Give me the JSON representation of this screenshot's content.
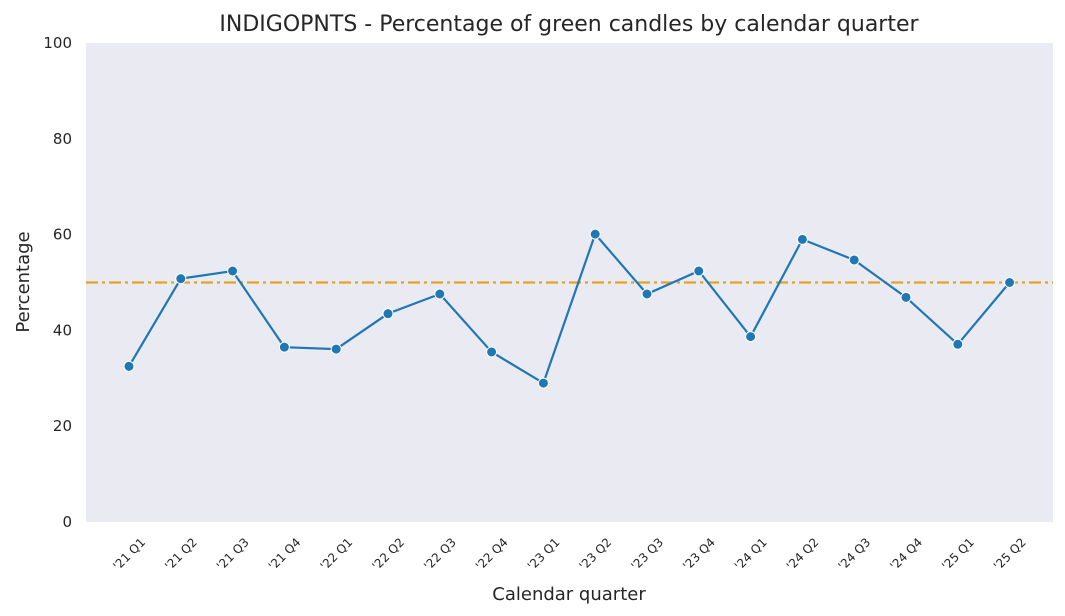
{
  "chart_data": {
    "type": "line",
    "title": "INDIGOPNTS - Percentage of green candles by calendar quarter",
    "xlabel": "Calendar quarter",
    "ylabel": "Percentage",
    "categories": [
      "'21 Q1",
      "'21 Q2",
      "'21 Q3",
      "'21 Q4",
      "'22 Q1",
      "'22 Q2",
      "'22 Q3",
      "'22 Q4",
      "'23 Q1",
      "'23 Q2",
      "'23 Q3",
      "'23 Q4",
      "'24 Q1",
      "'24 Q2",
      "'24 Q3",
      "'24 Q4",
      "'25 Q1",
      "'25 Q2"
    ],
    "series": [
      {
        "values": [
          32.5,
          50.8,
          52.4,
          36.5,
          36.1,
          43.5,
          47.6,
          35.5,
          29.0,
          60.1,
          47.6,
          52.4,
          38.7,
          59.0,
          54.7,
          46.9,
          37.1,
          50.0
        ]
      }
    ],
    "reference_line": {
      "y": 50,
      "style": "dash-dot"
    },
    "ylim": [
      0,
      100
    ],
    "yticks": [
      0,
      20,
      40,
      60,
      80,
      100
    ],
    "grid": false,
    "colors": {
      "line": "#1f77b4",
      "reference": "#e5a323",
      "plot_bg": "#eaeaf2"
    }
  }
}
